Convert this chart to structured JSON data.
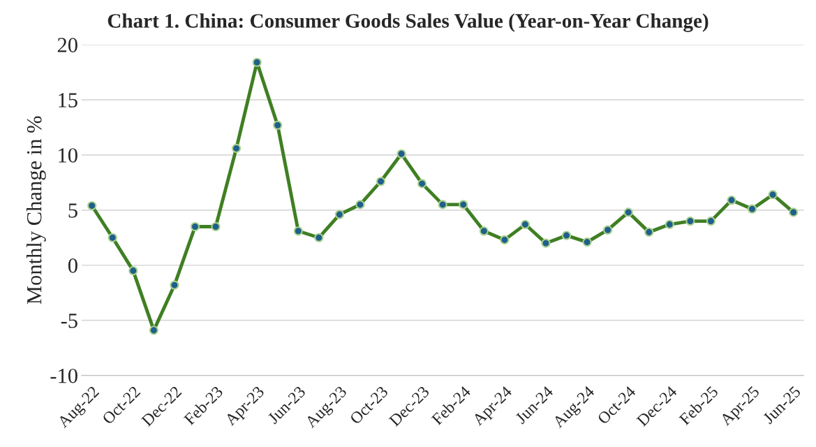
{
  "chart_data": {
    "type": "line",
    "title": "Chart 1. China: Consumer Goods Sales Value (Year-on-Year Change)",
    "ylabel": "Monthly Change in %",
    "categories": [
      "Aug-22",
      null,
      "Oct-22",
      null,
      "Dec-22",
      null,
      "Feb-23",
      null,
      "Apr-23",
      null,
      "Jun-23",
      null,
      "Aug-23",
      null,
      "Oct-23",
      null,
      "Dec-23",
      null,
      "Feb-24",
      null,
      "Apr-24",
      null,
      "Jun-24",
      null,
      "Aug-24",
      null,
      "Oct-24",
      null,
      "Dec-24",
      null,
      "Feb-25",
      null,
      "Apr-25",
      null,
      "Jun-25"
    ],
    "series": [
      {
        "color": "#3f7f23",
        "values": [
          5.4,
          2.5,
          -0.5,
          -5.9,
          -1.8,
          3.5,
          3.5,
          10.6,
          18.4,
          12.7,
          3.1,
          2.5,
          4.6,
          5.5,
          7.6,
          10.1,
          7.4,
          5.5,
          5.5,
          3.1,
          2.3,
          3.7,
          2.0,
          2.7,
          2.1,
          3.2,
          4.8,
          3.0,
          3.7,
          4.0,
          4.0,
          5.9,
          5.1,
          6.4,
          4.8
        ]
      }
    ],
    "ylim": [
      -10,
      20
    ],
    "yticks": [
      -10,
      -5,
      0,
      5,
      10,
      15,
      20
    ],
    "grid": "y",
    "marker": "circle",
    "line_style": "solid"
  }
}
